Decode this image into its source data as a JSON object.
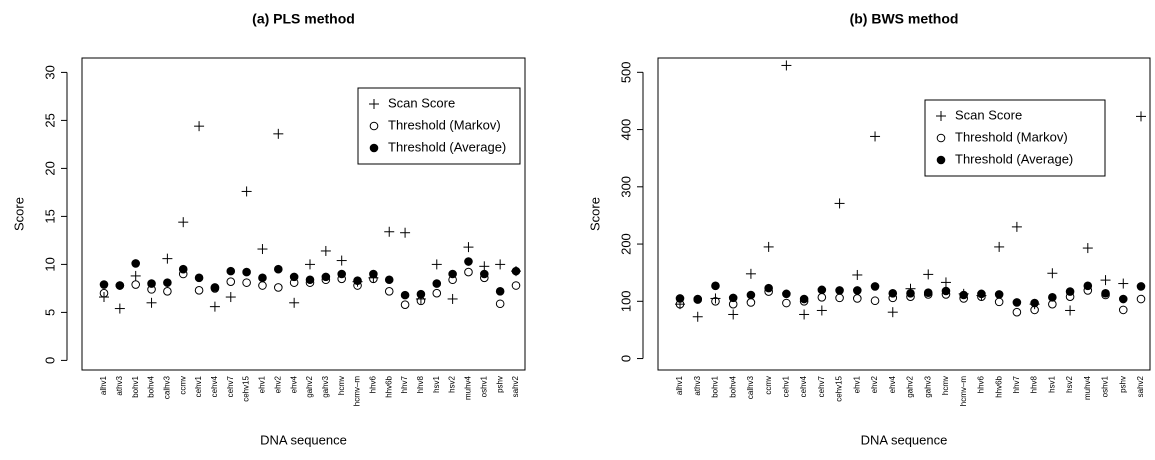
{
  "chart_data": [
    {
      "type": "point",
      "title": "(a) PLS method",
      "x_label": "DNA sequence",
      "y_label": "Score",
      "categories": [
        "alhv1",
        "athv3",
        "bohv1",
        "bohv4",
        "calhv3",
        "ccmv",
        "cehv1",
        "cehv4",
        "cehv7",
        "cehv15",
        "ehv1",
        "ehv2",
        "ehv4",
        "gahv2",
        "gahv3",
        "hcmv",
        "hcmv–m",
        "hhv6",
        "hhv6b",
        "hhv7",
        "hhv8",
        "hsv1",
        "hsv2",
        "muhv4",
        "oshv1",
        "pshv",
        "sahv2"
      ],
      "ylim": [
        -1,
        31.5
      ],
      "yticks": [
        0,
        5,
        10,
        15,
        20,
        25,
        30
      ],
      "grid": false,
      "legend": "topright",
      "series": [
        {
          "name": "Scan Score",
          "color": "#000000",
          "marker": "plus",
          "values": [
            6.6,
            5.4,
            8.8,
            6.0,
            10.6,
            14.4,
            24.4,
            5.6,
            6.6,
            17.6,
            11.6,
            23.6,
            6.0,
            10.0,
            11.4,
            10.4,
            8.2,
            8.6,
            13.4,
            13.3,
            6.4,
            10.0,
            6.4,
            11.8,
            9.8,
            10.0,
            9.3
          ]
        },
        {
          "name": "Threshold (Markov)",
          "color": "#000000",
          "marker": "circle-open",
          "values": [
            7.0,
            7.8,
            7.9,
            7.4,
            7.2,
            9.0,
            7.3,
            7.5,
            8.2,
            8.1,
            7.8,
            7.6,
            8.1,
            8.1,
            8.4,
            8.5,
            7.8,
            8.5,
            7.2,
            5.8,
            6.2,
            7.0,
            8.4,
            9.2,
            8.6,
            5.9,
            7.8
          ]
        },
        {
          "name": "Threshold (Average)",
          "color": "#000000",
          "marker": "circle-filled",
          "values": [
            7.9,
            7.8,
            10.1,
            8.0,
            8.1,
            9.5,
            8.6,
            7.6,
            9.3,
            9.2,
            8.6,
            9.5,
            8.7,
            8.4,
            8.7,
            9.0,
            8.3,
            9.0,
            8.4,
            6.8,
            6.9,
            8.0,
            9.0,
            10.3,
            9.0,
            7.2,
            9.3
          ]
        }
      ]
    },
    {
      "type": "point",
      "title": "(b) BWS method",
      "x_label": "DNA sequence",
      "y_label": "Score",
      "categories": [
        "alhv1",
        "athv3",
        "bohv1",
        "bohv4",
        "calhv3",
        "ccmv",
        "cehv1",
        "cehv4",
        "cehv7",
        "cehv15",
        "ehv1",
        "ehv2",
        "ehv4",
        "gahv2",
        "gahv3",
        "hcmv",
        "hcmv–m",
        "hhv6",
        "hhv6b",
        "hhv7",
        "hhv8",
        "hsv1",
        "hsv2",
        "muhv4",
        "oshv1",
        "pshv",
        "sahv2"
      ],
      "ylim": [
        -20,
        525
      ],
      "yticks": [
        0,
        100,
        200,
        300,
        400,
        500
      ],
      "grid": false,
      "legend": "topright",
      "series": [
        {
          "name": "Scan Score",
          "color": "#000000",
          "marker": "plus",
          "values": [
            95,
            73,
            105,
            77,
            148,
            195,
            512,
            77,
            84,
            271,
            146,
            388,
            81,
            122,
            147,
            133,
            113,
            110,
            195,
            230,
            95,
            149,
            84,
            193,
            137,
            131,
            423
          ]
        },
        {
          "name": "Threshold (Markov)",
          "color": "#000000",
          "marker": "circle-open",
          "values": [
            95,
            103,
            100,
            95,
            98,
            117,
            97,
            100,
            107,
            106,
            105,
            101,
            106,
            108,
            112,
            112,
            105,
            108,
            99,
            81,
            85,
            95,
            108,
            119,
            111,
            85,
            104
          ]
        },
        {
          "name": "Threshold (Average)",
          "color": "#000000",
          "marker": "circle-filled",
          "values": [
            105,
            104,
            127,
            106,
            111,
            123,
            113,
            104,
            120,
            119,
            119,
            126,
            114,
            114,
            115,
            118,
            111,
            113,
            112,
            98,
            97,
            107,
            117,
            127,
            114,
            104,
            126
          ]
        }
      ]
    }
  ]
}
